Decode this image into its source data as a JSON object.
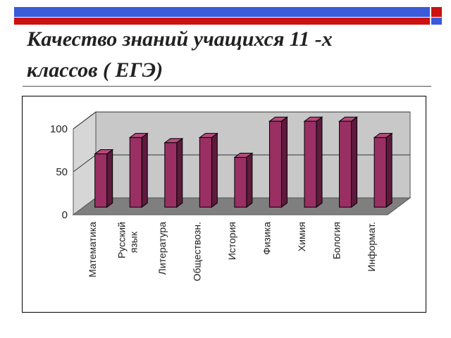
{
  "slide": {
    "title": "Качество знаний учащихся 11 -х\nклассов ( ЕГЭ)"
  },
  "colors": {
    "top_bar_blue": "#3B5BD9",
    "top_bar_red": "#CC1111",
    "bar_front": "#9A2F63",
    "bar_side": "#5E1A3D",
    "bar_top": "#B44A7C",
    "wall": "#C8C8C8",
    "floor": "#7F7F7F"
  },
  "chart_data": {
    "type": "bar",
    "style": "3d",
    "title": "",
    "xlabel": "",
    "ylabel": "",
    "ylim": [
      0,
      100
    ],
    "yticks": [
      0,
      50,
      100
    ],
    "grid": true,
    "categories": [
      [
        "Математика"
      ],
      [
        "Русский",
        "язык"
      ],
      [
        "Литература"
      ],
      [
        "Обществозн."
      ],
      [
        "История"
      ],
      [
        "Физика"
      ],
      [
        "Химия"
      ],
      [
        "Бология"
      ],
      [
        "Информат."
      ]
    ],
    "values": [
      62,
      81,
      75,
      81,
      58,
      100,
      100,
      100,
      81
    ]
  }
}
